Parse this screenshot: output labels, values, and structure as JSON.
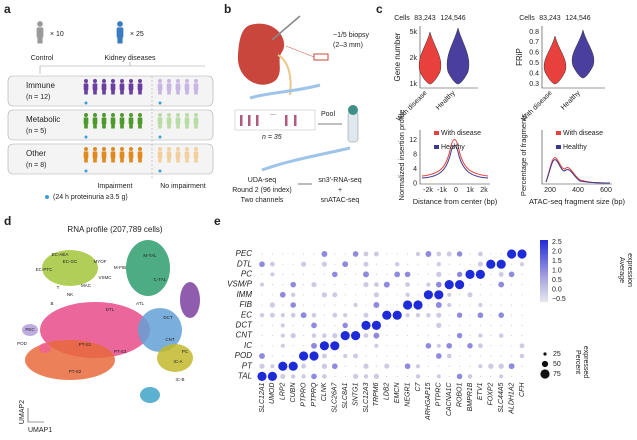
{
  "panel_a": {
    "label": "a",
    "control_count": "× 10",
    "disease_count": "× 25",
    "control": "Control",
    "disease": "Kidney diseases",
    "groups": [
      {
        "name": "Immune",
        "n": "(n = 12)"
      },
      {
        "name": "Metabolic",
        "n": "(n = 5)"
      },
      {
        "name": "Other",
        "n": "(n = 8)"
      }
    ],
    "impairment": "Impairment",
    "no_impairment": "No impairment",
    "note": "(24 h proteinuria ≥3.5 g)"
  },
  "panel_b": {
    "label": "b",
    "biopsy": "~1/5 biopsy",
    "biopsy_size": "(2–3 mm)",
    "dots": "...",
    "n": "n = 35",
    "pool": "Pool",
    "method": [
      "UDA-seq",
      "Round 2 (96 index)",
      "Two channels"
    ],
    "output": [
      "sn3′-RNA-seq",
      "+",
      "snATAC-seq"
    ]
  },
  "panel_c": {
    "label": "c",
    "cells": "Cells",
    "counts": [
      "83,243",
      "124,546"
    ],
    "groups": [
      "With disease",
      "Healthy"
    ],
    "gene_plot": {
      "ylabel": "Gene number",
      "yticks": [
        "5k",
        "2k",
        "1k"
      ]
    },
    "frip_plot": {
      "ylabel": "FRiP",
      "yticks": [
        "0.8",
        "0.7",
        "0.6",
        "0.5",
        "0.4",
        "0.3"
      ]
    },
    "tss_plot": {
      "ylabel": "Normalized insertion profile",
      "yticks": [
        "12",
        "8",
        "4",
        "0"
      ],
      "xticks": [
        "-2k",
        "-1k",
        "0",
        "1k",
        "2k"
      ],
      "xlabel": "Distance from center (bp)"
    },
    "frag_plot": {
      "ylabel": "Percentage of fragments",
      "xticks": [
        "200",
        "400",
        "600"
      ],
      "xlabel": "ATAC-seq fragment size (bp)"
    }
  },
  "panel_d": {
    "label": "d",
    "title": "RNA profile (207,789 cells)",
    "xaxis": "UMAP1",
    "yaxis": "UMAP2",
    "clusters": [
      "EC-AEA",
      "EC-GC",
      "EC-PTC",
      "MYOF",
      "M-FIB",
      "VSMC",
      "M-TAL",
      "C-TAL",
      "DCT",
      "CNT",
      "PC",
      "IC-A",
      "IC-B",
      "POD",
      "PEC",
      "PT-S1",
      "PT-S2",
      "PT-S3",
      "DTL",
      "ATL",
      "T",
      "NK",
      "B",
      "MAC"
    ]
  },
  "panel_e": {
    "label": "e",
    "cell_types": [
      "PEC",
      "DTL",
      "PC",
      "VSM/P",
      "IMM",
      "FIB",
      "EC",
      "DCT",
      "CNT",
      "IC",
      "POD",
      "PT",
      "TAL"
    ],
    "genes": [
      "SLC12A1",
      "UMOD",
      "LRP2",
      "CUBN",
      "PTPRO",
      "PTPRQ",
      "CLNK",
      "SLC26A7",
      "SLC8A1",
      "SNTG1",
      "SLC12A3",
      "TRPM6",
      "LDB2",
      "EMCN",
      "NEGR1",
      "C7",
      "ARHGAP15",
      "PTPRC",
      "CACNA1C",
      "ROBO1",
      "BMPR1B",
      "ETV1",
      "FOXP2",
      "SLC44A5",
      "ALDH1A2",
      "CFH"
    ],
    "expression_title": [
      "Average",
      "expression"
    ],
    "expression_ticks": [
      "2.5",
      "2.0",
      "1.5",
      "1.0",
      "0.5",
      "0.0",
      "−0.5"
    ],
    "percent_title": [
      "Percent",
      "expressed"
    ],
    "percent_ticks": [
      "25",
      "50",
      "75"
    ]
  }
}
